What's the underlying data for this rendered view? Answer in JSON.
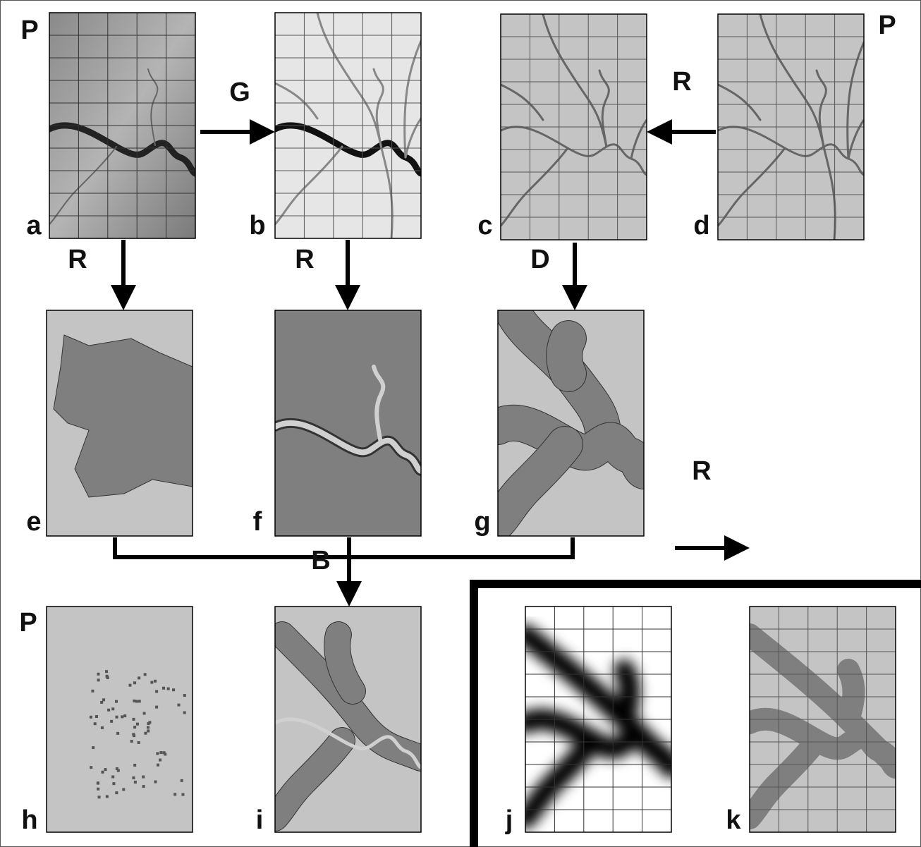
{
  "markers": [
    "P",
    "P",
    "P"
  ],
  "panel_letters": [
    "a",
    "b",
    "c",
    "d",
    "e",
    "f",
    "g",
    "h",
    "i",
    "j",
    "k"
  ],
  "operation_labels": [
    "G",
    "R",
    "R",
    "R",
    "D",
    "B",
    "R"
  ]
}
